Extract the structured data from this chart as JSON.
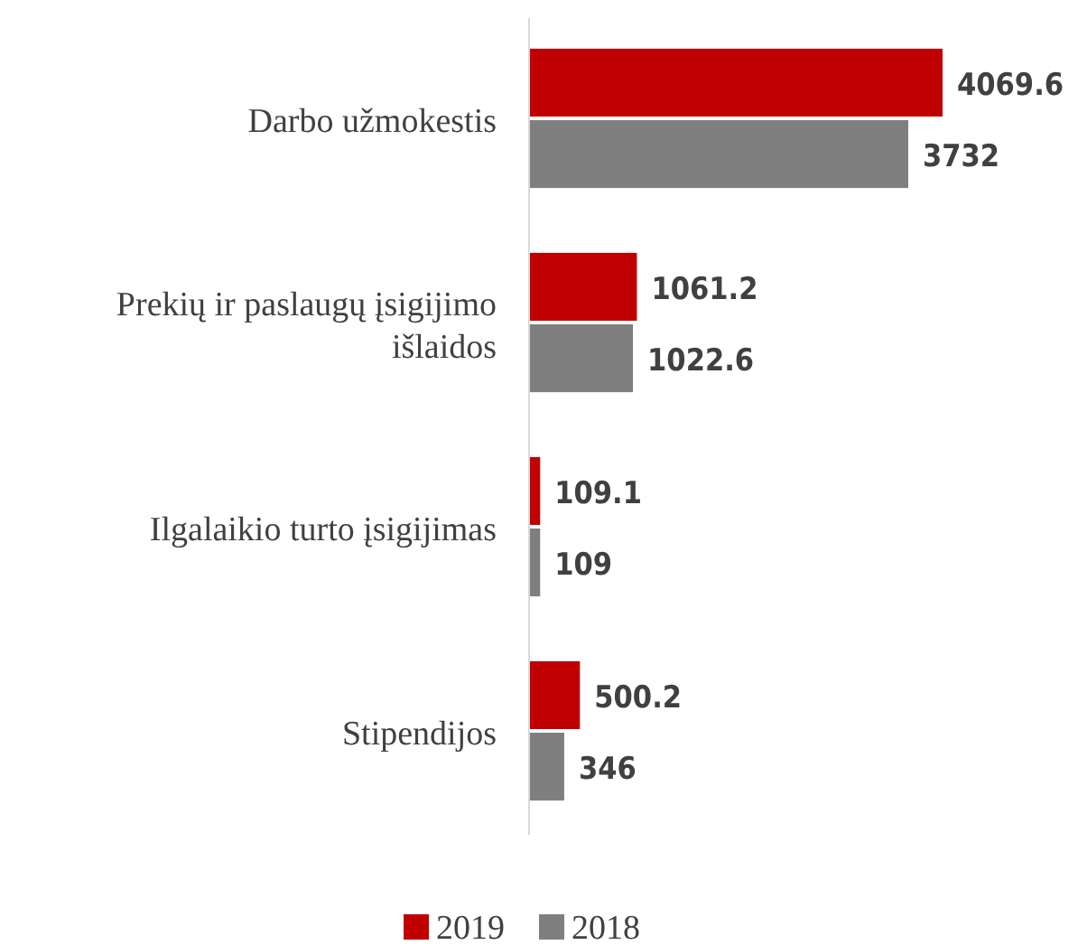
{
  "chart_data": {
    "type": "bar",
    "orientation": "horizontal",
    "categories": [
      "Darbo užmokestis",
      "Prekių ir paslaugų įsigijimo išlaidos",
      "Ilgalaikio turto įsigijimas",
      "Stipendijos"
    ],
    "series": [
      {
        "name": "2019",
        "color": "#c00000",
        "values": [
          4069.6,
          1061.2,
          109.1,
          500.2
        ]
      },
      {
        "name": "2018",
        "color": "#7f7f7f",
        "values": [
          3732,
          1022.6,
          109,
          346
        ]
      }
    ],
    "data_labels": true,
    "legend": "bottom"
  }
}
